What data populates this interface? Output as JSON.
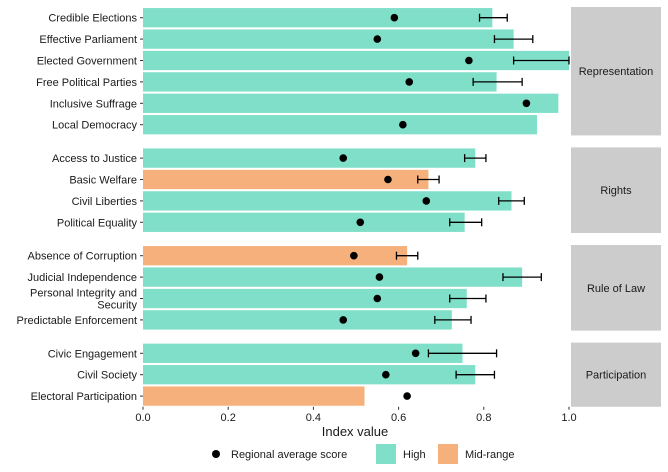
{
  "chart_data": {
    "type": "bar",
    "orientation": "horizontal",
    "xlabel": "Index value",
    "ylabel": "",
    "title": "",
    "xlim": [
      0,
      1.0
    ],
    "xticks": [
      "0.0",
      "0.2",
      "0.4",
      "0.6",
      "0.8",
      "1.0"
    ],
    "grid": false,
    "legend": {
      "placement": "bottom",
      "items": [
        {
          "kind": "point",
          "label": "Regional average score"
        },
        {
          "kind": "fill",
          "label": "High",
          "key": "high"
        },
        {
          "kind": "fill",
          "label": "Mid-range",
          "key": "mid"
        }
      ]
    },
    "colors": {
      "high": "#7fdfc9",
      "mid": "#f5b07c",
      "point": "#000000",
      "strip": "#cccccc"
    },
    "facets": [
      {
        "name": "Representation",
        "items": [
          {
            "label": "Credible Elections",
            "value": 0.82,
            "level": "high",
            "avg": 0.59,
            "err": [
              0.79,
              0.855
            ]
          },
          {
            "label": "Effective Parliament",
            "value": 0.87,
            "level": "high",
            "avg": 0.55,
            "err": [
              0.825,
              0.915
            ]
          },
          {
            "label": "Elected Government",
            "value": 1.0,
            "level": "high",
            "avg": 0.765,
            "err": [
              0.87,
              1.0
            ]
          },
          {
            "label": "Free Political Parties",
            "value": 0.83,
            "level": "high",
            "avg": 0.625,
            "err": [
              0.775,
              0.89
            ]
          },
          {
            "label": "Inclusive Suffrage",
            "value": 0.975,
            "level": "high",
            "avg": 0.9,
            "err": null
          },
          {
            "label": "Local Democracy",
            "value": 0.925,
            "level": "high",
            "avg": 0.61,
            "err": null
          }
        ]
      },
      {
        "name": "Rights",
        "items": [
          {
            "label": "Access to Justice",
            "value": 0.78,
            "level": "high",
            "avg": 0.47,
            "err": [
              0.755,
              0.805
            ]
          },
          {
            "label": "Basic Welfare",
            "value": 0.67,
            "level": "mid",
            "avg": 0.575,
            "err": [
              0.645,
              0.695
            ]
          },
          {
            "label": "Civil Liberties",
            "value": 0.865,
            "level": "high",
            "avg": 0.665,
            "err": [
              0.835,
              0.895
            ]
          },
          {
            "label": "Political Equality",
            "value": 0.755,
            "level": "high",
            "avg": 0.51,
            "err": [
              0.72,
              0.795
            ]
          }
        ]
      },
      {
        "name": "Rule of Law",
        "items": [
          {
            "label": "Absence of Corruption",
            "value": 0.62,
            "level": "mid",
            "avg": 0.495,
            "err": [
              0.595,
              0.645
            ]
          },
          {
            "label": "Judicial Independence",
            "value": 0.89,
            "level": "high",
            "avg": 0.555,
            "err": [
              0.845,
              0.935
            ]
          },
          {
            "label": "Personal Integrity and Security",
            "value": 0.76,
            "level": "high",
            "avg": 0.55,
            "err": [
              0.72,
              0.805
            ]
          },
          {
            "label": "Predictable Enforcement",
            "value": 0.725,
            "level": "high",
            "avg": 0.47,
            "err": [
              0.685,
              0.77
            ]
          }
        ]
      },
      {
        "name": "Participation",
        "items": [
          {
            "label": "Civic Engagement",
            "value": 0.75,
            "level": "high",
            "avg": 0.64,
            "err": [
              0.67,
              0.83
            ]
          },
          {
            "label": "Civil Society",
            "value": 0.78,
            "level": "high",
            "avg": 0.57,
            "err": [
              0.735,
              0.825
            ]
          },
          {
            "label": "Electoral Participation",
            "value": 0.52,
            "level": "mid",
            "avg": 0.62,
            "err": null
          }
        ]
      }
    ]
  }
}
